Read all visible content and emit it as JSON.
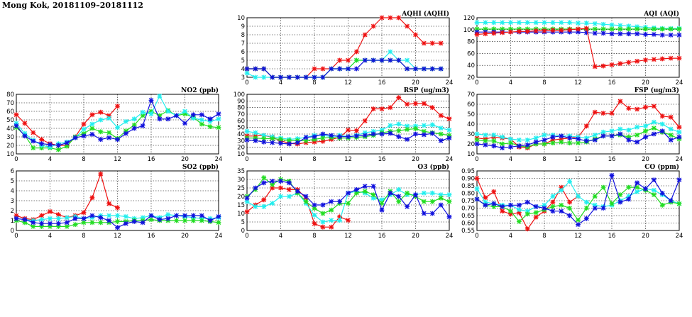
{
  "page_title": "Mong Kok, 20181109–20181112",
  "colors": {
    "red": "#ee1111",
    "green": "#22dd22",
    "cyan": "#22eeee",
    "blue": "#1111dd"
  },
  "chart_data": [
    {
      "id": "aqhi",
      "type": "line",
      "title": "AQHI (AQHI)",
      "xlim": [
        0,
        24
      ],
      "ylim": [
        3,
        10
      ],
      "xticks": [
        "0",
        "4",
        "8",
        "12",
        "16",
        "20",
        "24"
      ],
      "yticks": [
        "3",
        "4",
        "5",
        "6",
        "7",
        "8",
        "9",
        "10"
      ],
      "series": [
        {
          "name": "red",
          "values": [
            4,
            4,
            4,
            3,
            3,
            3,
            3,
            3,
            4,
            4,
            4,
            5,
            5,
            6,
            8,
            9,
            10,
            10,
            10,
            9,
            8,
            7,
            7,
            7
          ]
        },
        {
          "name": "cyan",
          "values": [
            3.5,
            3,
            3,
            3,
            3,
            3,
            3,
            3,
            3,
            3,
            4,
            4,
            4,
            5,
            5,
            5,
            5,
            6,
            5,
            5,
            4,
            4,
            4,
            4
          ]
        },
        {
          "name": "green",
          "values": [
            4,
            4,
            4,
            3,
            3,
            3,
            3,
            3,
            3,
            3,
            4,
            4,
            4,
            5,
            5,
            5,
            5,
            5,
            5,
            4,
            4,
            4,
            4,
            4
          ]
        },
        {
          "name": "blue",
          "values": [
            4,
            4,
            4,
            3,
            3,
            3,
            3,
            3,
            3,
            3,
            4,
            4,
            4,
            4,
            5,
            5,
            5,
            5,
            5,
            4,
            4,
            4,
            4,
            4
          ]
        }
      ]
    },
    {
      "id": "aqi",
      "type": "line",
      "title": "AQI (AQI)",
      "xlim": [
        0,
        24
      ],
      "ylim": [
        20,
        120
      ],
      "xticks": [
        "0",
        "4",
        "8",
        "12",
        "16",
        "20",
        "24"
      ],
      "yticks": [
        "20",
        "40",
        "60",
        "80",
        "100",
        "120"
      ],
      "series": [
        {
          "name": "cyan",
          "values": [
            112,
            112,
            112,
            112,
            112,
            112,
            112,
            112,
            112,
            112,
            112,
            112,
            111,
            111,
            110,
            109,
            108,
            107,
            106,
            105,
            104,
            103,
            102,
            102,
            102
          ]
        },
        {
          "name": "green",
          "values": [
            101,
            101,
            101,
            101,
            101,
            101,
            101,
            101,
            101,
            101,
            101,
            101,
            101,
            101,
            101,
            101,
            101,
            101,
            101,
            101,
            101,
            101,
            101,
            101,
            101
          ]
        },
        {
          "name": "blue",
          "values": [
            96,
            96,
            96,
            96,
            96,
            96,
            96,
            96,
            96,
            96,
            96,
            96,
            96,
            95,
            94,
            94,
            93,
            93,
            93,
            93,
            92,
            92,
            91,
            91,
            91
          ]
        },
        {
          "name": "red",
          "values": [
            92,
            93,
            94,
            95,
            96,
            97,
            97,
            98,
            98,
            99,
            99,
            100,
            101,
            102,
            38,
            39,
            41,
            43,
            45,
            47,
            49,
            50,
            51,
            52,
            52
          ]
        }
      ]
    },
    {
      "id": "no2",
      "type": "line",
      "title": "NO2 (ppb)",
      "xlim": [
        0,
        24
      ],
      "ylim": [
        10,
        80
      ],
      "xticks": [
        "0",
        "4",
        "8",
        "12",
        "16",
        "20",
        "24"
      ],
      "yticks": [
        "10",
        "20",
        "30",
        "40",
        "50",
        "60",
        "70",
        "80"
      ],
      "series": [
        {
          "name": "red",
          "values": [
            56,
            46,
            35,
            27,
            22,
            20,
            20,
            30,
            45,
            56,
            59,
            55,
            66,
            null,
            null,
            null,
            null,
            null,
            null,
            null,
            null,
            null,
            null,
            null,
            null
          ]
        },
        {
          "name": "green",
          "values": [
            41,
            32,
            17,
            17,
            17,
            15,
            19,
            30,
            34,
            40,
            36,
            35,
            28,
            37,
            44,
            55,
            60,
            55,
            61,
            55,
            57,
            53,
            45,
            42,
            41
          ]
        },
        {
          "name": "cyan",
          "values": [
            46,
            34,
            26,
            20,
            18,
            22,
            24,
            29,
            39,
            45,
            50,
            52,
            41,
            48,
            51,
            59,
            57,
            78,
            60,
            55,
            60,
            52,
            50,
            48,
            51
          ]
        },
        {
          "name": "blue",
          "values": [
            43,
            31,
            25,
            22,
            21,
            20,
            23,
            29,
            31,
            33,
            27,
            29,
            27,
            34,
            40,
            43,
            73,
            51,
            51,
            55,
            46,
            56,
            56,
            51,
            57
          ]
        }
      ]
    },
    {
      "id": "rsp",
      "type": "line",
      "title": "RSP (ug/m3)",
      "xlim": [
        0,
        24
      ],
      "ylim": [
        10,
        100
      ],
      "xticks": [
        "0",
        "4",
        "8",
        "12",
        "16",
        "20",
        "24"
      ],
      "yticks": [
        "10",
        "20",
        "30",
        "40",
        "50",
        "60",
        "70",
        "80",
        "90",
        "100"
      ],
      "series": [
        {
          "name": "red",
          "values": [
            37,
            37,
            38,
            35,
            30,
            26,
            25,
            27,
            28,
            29,
            32,
            35,
            46,
            45,
            60,
            78,
            78,
            80,
            95,
            85,
            86,
            86,
            80,
            68,
            63
          ]
        },
        {
          "name": "cyan",
          "values": [
            44,
            42,
            38,
            36,
            34,
            32,
            33,
            35,
            38,
            38,
            36,
            38,
            36,
            38,
            42,
            44,
            46,
            53,
            55,
            52,
            52,
            53,
            54,
            49,
            46
          ]
        },
        {
          "name": "green",
          "values": [
            34,
            34,
            33,
            33,
            32,
            30,
            30,
            30,
            32,
            34,
            35,
            34,
            34,
            35,
            36,
            38,
            42,
            44,
            45,
            47,
            48,
            44,
            42,
            40,
            38
          ]
        },
        {
          "name": "blue",
          "values": [
            31,
            30,
            28,
            27,
            26,
            25,
            27,
            35,
            36,
            40,
            38,
            36,
            36,
            37,
            38,
            40,
            40,
            41,
            36,
            32,
            40,
            39,
            41,
            30,
            34
          ]
        }
      ]
    },
    {
      "id": "fsp",
      "type": "line",
      "title": "FSP (ug/m3)",
      "xlim": [
        0,
        24
      ],
      "ylim": [
        10,
        70
      ],
      "xticks": [
        "0",
        "4",
        "8",
        "12",
        "16",
        "20",
        "24"
      ],
      "yticks": [
        "10",
        "20",
        "30",
        "40",
        "50",
        "60",
        "70"
      ],
      "series": [
        {
          "name": "red",
          "values": [
            26,
            25,
            27,
            26,
            25,
            17,
            16,
            20,
            20,
            24,
            25,
            26,
            27,
            38,
            52,
            51,
            51,
            63,
            56,
            55,
            57,
            58,
            48,
            47,
            37
          ]
        },
        {
          "name": "cyan",
          "values": [
            30,
            29,
            29,
            27,
            25,
            24,
            24,
            26,
            29,
            29,
            28,
            28,
            27,
            26,
            29,
            32,
            33,
            35,
            34,
            37,
            38,
            42,
            40,
            35,
            32
          ]
        },
        {
          "name": "green",
          "values": [
            24,
            23,
            23,
            20,
            21,
            18,
            17,
            20,
            20,
            21,
            22,
            21,
            21,
            22,
            25,
            28,
            28,
            29,
            27,
            29,
            33,
            36,
            32,
            29,
            25
          ]
        },
        {
          "name": "blue",
          "values": [
            20,
            19,
            18,
            16,
            17,
            18,
            19,
            22,
            24,
            27,
            28,
            26,
            25,
            23,
            24,
            28,
            28,
            30,
            24,
            22,
            27,
            30,
            33,
            24,
            27
          ]
        }
      ]
    },
    {
      "id": "so2",
      "type": "line",
      "title": "SO2 (ppb)",
      "xlim": [
        0,
        24
      ],
      "ylim": [
        0,
        6
      ],
      "xticks": [
        "0",
        "4",
        "8",
        "12",
        "16",
        "20",
        "24"
      ],
      "yticks": [
        "0",
        "1",
        "2",
        "3",
        "4",
        "5",
        "6"
      ],
      "series": [
        {
          "name": "red",
          "values": [
            1.5,
            1.2,
            1.1,
            1.5,
            1.9,
            1.6,
            1.3,
            1.5,
            1.8,
            3.3,
            5.7,
            2.7,
            2.3,
            null,
            null,
            null,
            null,
            null,
            null,
            null,
            null,
            null,
            null,
            null,
            null
          ]
        },
        {
          "name": "cyan",
          "values": [
            1.2,
            1.1,
            1.0,
            1.1,
            1.2,
            1.2,
            1.3,
            1.4,
            1.2,
            1.3,
            1.5,
            1.5,
            1.5,
            1.4,
            1.2,
            1.3,
            1.5,
            1.3,
            1.6,
            1.5,
            1.4,
            1.3,
            1.2,
            1.2,
            1.3
          ]
        },
        {
          "name": "green",
          "values": [
            1.0,
            0.8,
            0.4,
            0.4,
            0.4,
            0.4,
            0.4,
            0.6,
            0.8,
            0.8,
            0.8,
            0.8,
            0.9,
            0.9,
            1.0,
            1.0,
            1.1,
            1.0,
            1.0,
            1.0,
            1.0,
            1.0,
            1.0,
            0.9,
            0.8
          ]
        },
        {
          "name": "blue",
          "values": [
            1.2,
            1.1,
            0.8,
            0.7,
            0.7,
            0.7,
            0.8,
            1.2,
            1.2,
            1.5,
            1.3,
            1.0,
            0.3,
            0.7,
            0.9,
            0.8,
            1.5,
            1.1,
            1.2,
            1.5,
            1.5,
            1.5,
            1.5,
            1.0,
            1.4
          ]
        }
      ]
    },
    {
      "id": "o3",
      "type": "line",
      "title": "O3 (ppb)",
      "xlim": [
        0,
        24
      ],
      "ylim": [
        0,
        35
      ],
      "xticks": [
        "0",
        "4",
        "8",
        "12",
        "16",
        "20",
        "24"
      ],
      "yticks": [
        "0",
        "5",
        "10",
        "15",
        "20",
        "25",
        "30",
        "35"
      ],
      "series": [
        {
          "name": "red",
          "values": [
            11,
            15,
            18,
            25,
            25,
            24,
            24,
            19,
            4,
            2,
            2,
            8,
            6,
            null,
            null,
            null,
            null,
            null,
            null,
            null,
            null,
            null,
            null,
            null,
            null
          ]
        },
        {
          "name": "cyan",
          "values": [
            17,
            14,
            14,
            16,
            20,
            20,
            22,
            16,
            9,
            5,
            6,
            6,
            22,
            23,
            22,
            19,
            18,
            21,
            24,
            21,
            21,
            22,
            22,
            21,
            21
          ]
        },
        {
          "name": "green",
          "values": [
            20,
            24,
            31,
            27,
            30,
            29,
            22,
            17,
            13,
            10,
            12,
            16,
            16,
            22,
            23,
            21,
            16,
            23,
            17,
            22,
            20,
            17,
            17,
            19,
            17
          ]
        },
        {
          "name": "blue",
          "values": [
            19,
            25,
            28,
            29,
            29,
            28,
            23,
            20,
            15,
            15,
            17,
            17,
            22,
            24,
            26,
            26,
            12,
            22,
            20,
            14,
            21,
            10,
            10,
            15,
            8
          ]
        }
      ]
    },
    {
      "id": "co",
      "type": "line",
      "title": "CO (ppm)",
      "xlim": [
        0,
        24
      ],
      "ylim": [
        0.55,
        0.95
      ],
      "xticks": [
        "0",
        "4",
        "8",
        "12",
        "16",
        "20",
        "24"
      ],
      "yticks": [
        "0.55",
        "0.60",
        "0.65",
        "0.70",
        "0.75",
        "0.80",
        "0.85",
        "0.90",
        "0.95"
      ],
      "series": [
        {
          "name": "red",
          "values": [
            0.9,
            0.77,
            0.81,
            0.68,
            0.66,
            0.67,
            0.56,
            0.64,
            0.68,
            0.74,
            0.84,
            0.74,
            0.78,
            null,
            null,
            null,
            null,
            null,
            null,
            null,
            null,
            null,
            null,
            null,
            null
          ]
        },
        {
          "name": "cyan",
          "values": [
            0.83,
            0.74,
            0.73,
            0.72,
            0.72,
            0.69,
            0.68,
            0.71,
            0.72,
            0.78,
            0.82,
            0.88,
            0.78,
            0.74,
            0.72,
            0.71,
            0.72,
            0.75,
            0.78,
            0.81,
            0.83,
            0.82,
            0.79,
            0.75,
            0.73
          ]
        },
        {
          "name": "green",
          "values": [
            0.76,
            0.72,
            0.71,
            0.71,
            0.68,
            0.61,
            0.66,
            0.67,
            0.69,
            0.71,
            0.72,
            0.7,
            0.62,
            0.7,
            0.78,
            0.84,
            0.73,
            0.79,
            0.84,
            0.84,
            0.82,
            0.79,
            0.72,
            0.74,
            0.73
          ]
        },
        {
          "name": "blue",
          "values": [
            0.76,
            0.72,
            0.73,
            0.71,
            0.72,
            0.72,
            0.74,
            0.71,
            0.7,
            0.68,
            0.68,
            0.65,
            0.59,
            0.63,
            0.7,
            0.7,
            0.92,
            0.74,
            0.76,
            0.87,
            0.83,
            0.89,
            0.8,
            0.75,
            0.89
          ]
        }
      ]
    }
  ]
}
